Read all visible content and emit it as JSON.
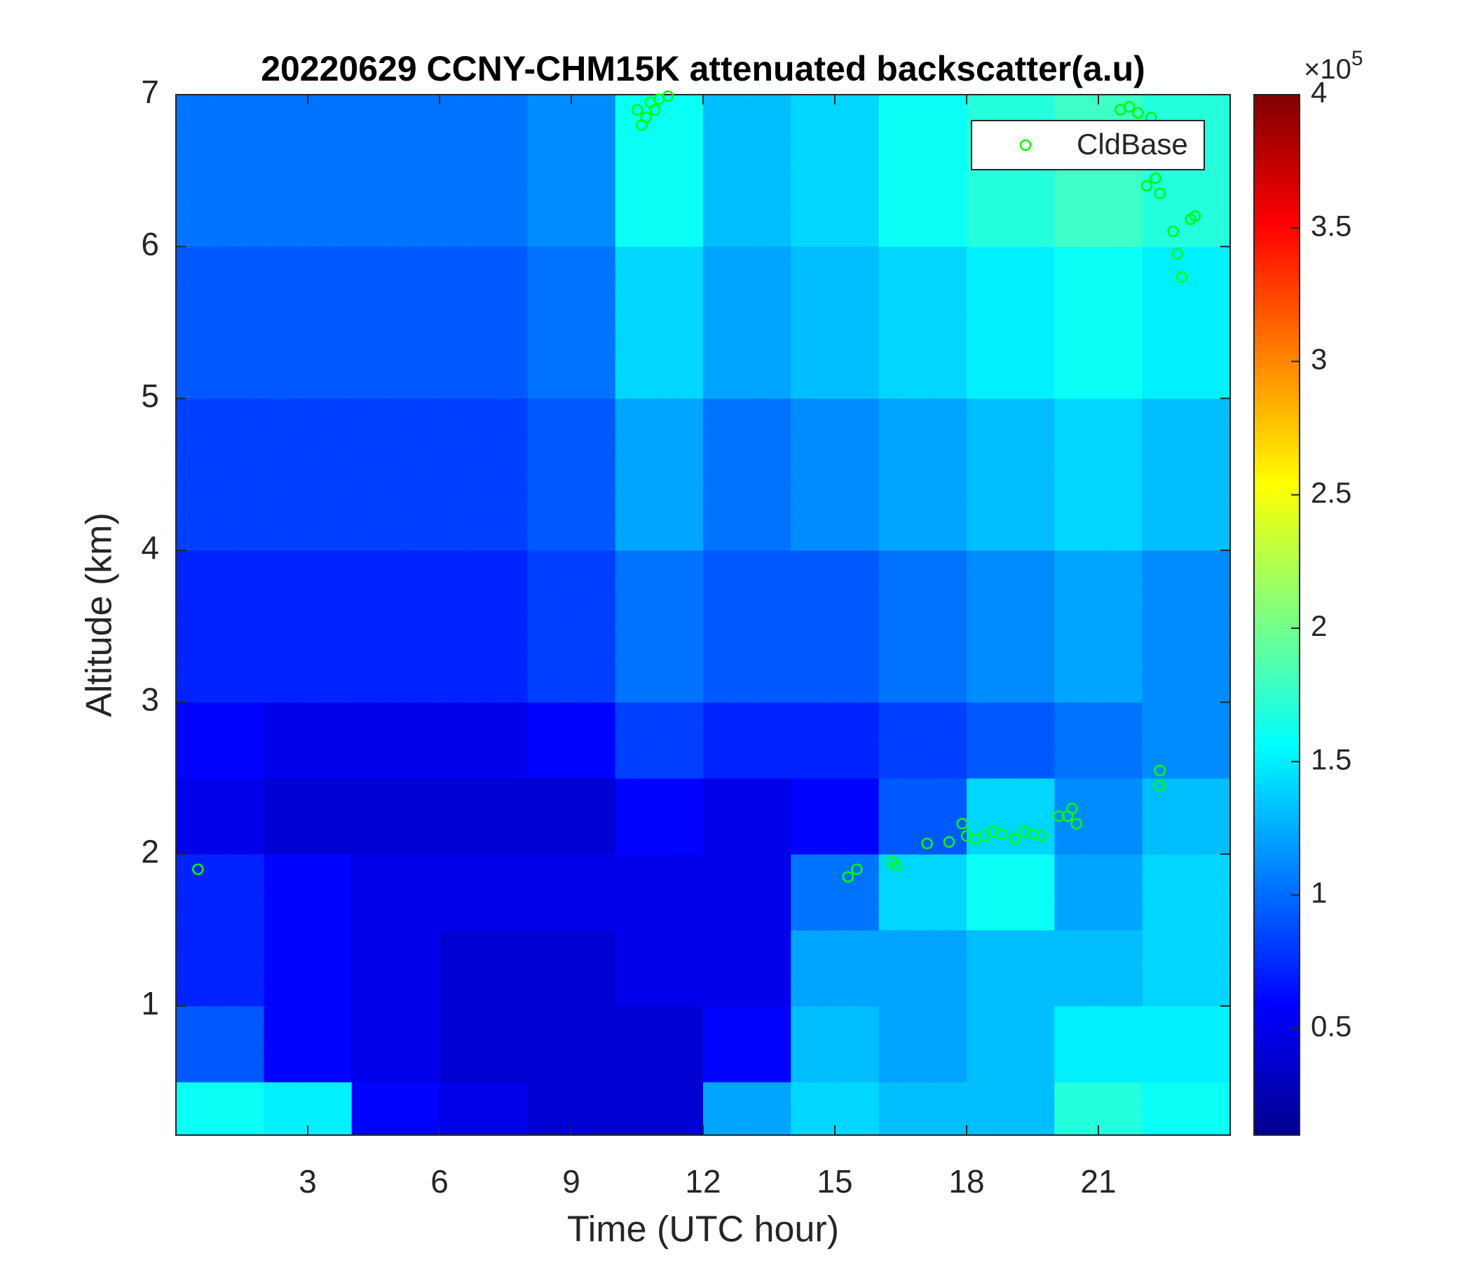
{
  "chart_data": {
    "type": "heatmap",
    "title": "20220629 CCNY-CHM15K attenuated backscatter(a.u)",
    "x_label": "Time (UTC hour)",
    "y_label": "Altitude (km)",
    "xlim": [
      0,
      24
    ],
    "xticks": [
      3,
      6,
      9,
      12,
      15,
      18,
      21
    ],
    "ylim": [
      0.15,
      7
    ],
    "yticks": [
      1,
      2,
      3,
      4,
      5,
      6,
      7
    ],
    "x_edges": [
      0,
      2,
      4,
      6,
      8,
      10,
      12,
      14,
      16,
      18,
      20,
      22,
      24
    ],
    "y_edges": [
      0.15,
      0.5,
      1,
      1.5,
      2,
      2.5,
      3,
      4,
      5,
      6,
      7
    ],
    "z": [
      [
        1.6,
        1.5,
        0.6,
        0.5,
        0.4,
        0.4,
        1.2,
        1.4,
        1.3,
        1.3,
        1.7,
        1.6
      ],
      [
        0.9,
        0.6,
        0.5,
        0.4,
        0.4,
        0.4,
        0.6,
        1.3,
        1.2,
        1.3,
        1.5,
        1.5
      ],
      [
        0.7,
        0.6,
        0.5,
        0.4,
        0.4,
        0.5,
        0.5,
        1.2,
        1.2,
        1.3,
        1.3,
        1.4
      ],
      [
        0.7,
        0.6,
        0.5,
        0.5,
        0.5,
        0.5,
        0.5,
        1.0,
        1.4,
        1.6,
        1.2,
        1.4
      ],
      [
        0.5,
        0.4,
        0.4,
        0.4,
        0.4,
        0.6,
        0.5,
        0.6,
        0.9,
        1.4,
        1.1,
        1.3
      ],
      [
        0.6,
        0.5,
        0.5,
        0.5,
        0.6,
        0.8,
        0.7,
        0.7,
        0.8,
        0.9,
        1.0,
        1.1
      ],
      [
        0.7,
        0.7,
        0.7,
        0.7,
        0.8,
        1.0,
        0.9,
        0.9,
        1.0,
        1.1,
        1.2,
        1.1
      ],
      [
        0.8,
        0.8,
        0.8,
        0.8,
        0.9,
        1.2,
        1.0,
        1.1,
        1.2,
        1.3,
        1.4,
        1.3
      ],
      [
        0.9,
        0.9,
        0.9,
        0.9,
        1.0,
        1.4,
        1.2,
        1.3,
        1.4,
        1.5,
        1.6,
        1.5
      ],
      [
        1.0,
        1.0,
        1.0,
        1.0,
        1.1,
        1.6,
        1.3,
        1.4,
        1.6,
        1.7,
        1.8,
        1.7
      ]
    ],
    "colormap": "jet",
    "clim": [
      0.1,
      4
    ],
    "cticks": [
      0.5,
      1,
      1.5,
      2,
      2.5,
      3,
      3.5,
      4
    ],
    "colorbar_multiplier": "×10",
    "colorbar_exponent": "5",
    "legend_position": "upper right",
    "series": [
      {
        "name": "CldBase",
        "color": "#00ff00",
        "type": "scatter",
        "x": [
          0.5,
          10.5,
          10.6,
          10.7,
          10.8,
          10.9,
          11.0,
          11.2,
          15.3,
          15.5,
          16.3,
          16.4,
          17.1,
          17.6,
          17.9,
          18.0,
          18.2,
          18.4,
          18.6,
          18.8,
          19.1,
          19.3,
          19.5,
          19.7,
          20.1,
          20.3,
          20.4,
          20.5,
          22.4,
          22.4,
          21.5,
          21.7,
          21.9,
          22.2,
          22.1,
          22.3,
          22.4,
          22.7,
          22.8,
          22.9,
          23.1,
          23.2
        ],
        "values": [
          1.9,
          6.9,
          6.8,
          6.85,
          6.95,
          6.9,
          6.97,
          6.99,
          1.85,
          1.9,
          1.95,
          1.92,
          2.07,
          2.08,
          2.2,
          2.12,
          2.1,
          2.12,
          2.15,
          2.13,
          2.1,
          2.15,
          2.13,
          2.12,
          2.25,
          2.25,
          2.3,
          2.2,
          2.55,
          2.45,
          6.9,
          6.92,
          6.88,
          6.85,
          6.4,
          6.45,
          6.35,
          6.1,
          5.95,
          5.8,
          6.18,
          6.2
        ]
      }
    ]
  }
}
